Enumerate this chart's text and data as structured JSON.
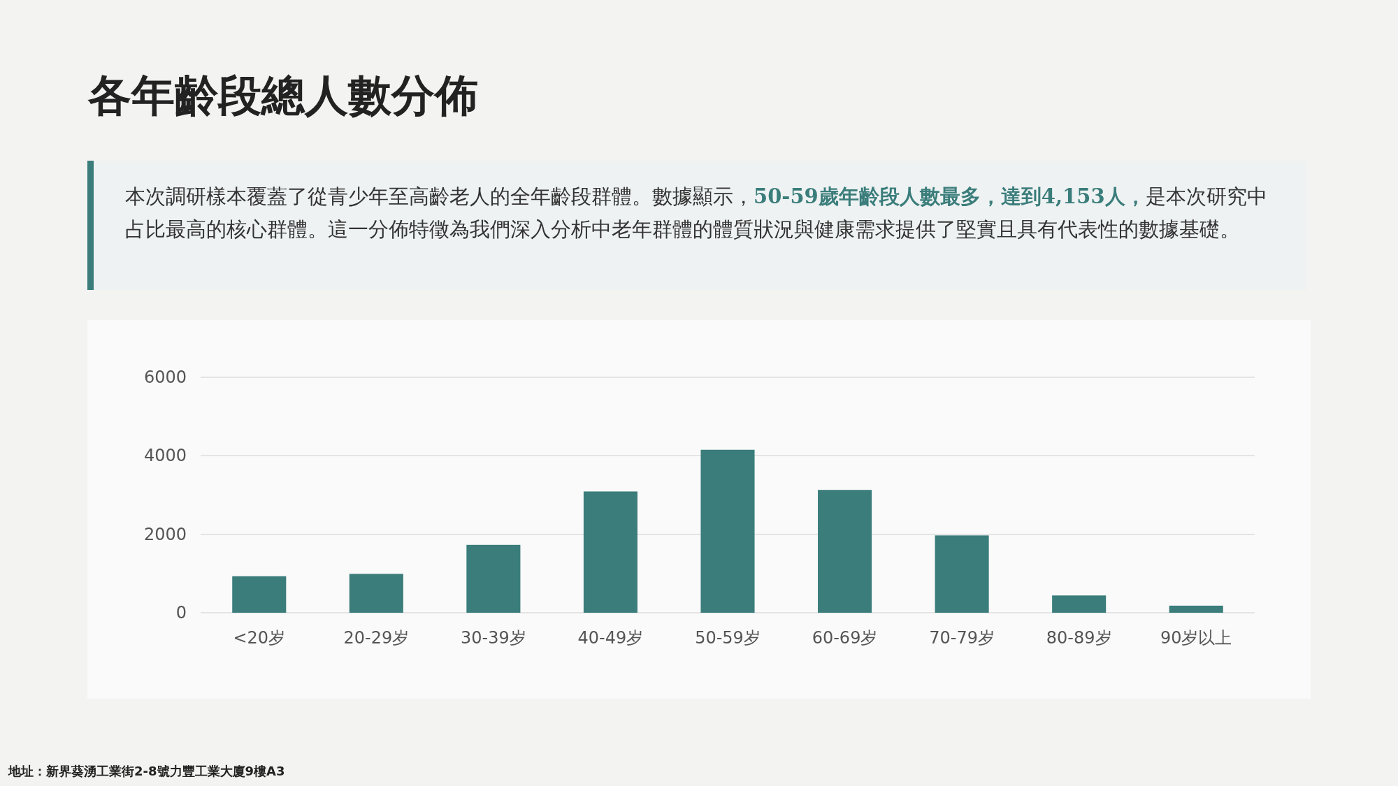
{
  "chart_data": {
    "type": "bar",
    "title": "各年齡段總人數分佈",
    "annotations": [
      "本次調研樣本覆蓋了從青少年至高齡老人的全年齡段群體。數據顯示，",
      "50-59歲年齡段人數最多，達到4,153人，",
      "是本次研究中占比最高的核心群體。這一分佈特徵為我們深入分析中老年群體的體質狀況與健康需求提供了堅實且具有代表性的數據基礎。",
      "地址：新界葵湧工業街2-8號力豐工業大廈9樓A3"
    ],
    "categories": [
      "<20岁",
      "20-29岁",
      "30-39岁",
      "40-49岁",
      "50-59岁",
      "60-69岁",
      "70-79岁",
      "80-89岁",
      "90岁以上"
    ],
    "values": [
      930,
      990,
      1730,
      3090,
      4153,
      3130,
      1970,
      440,
      180
    ],
    "color": "#3a7d7b",
    "ylim": [
      0,
      6000
    ],
    "yticks": [
      0,
      2000,
      4000,
      6000
    ],
    "grid": "y"
  }
}
